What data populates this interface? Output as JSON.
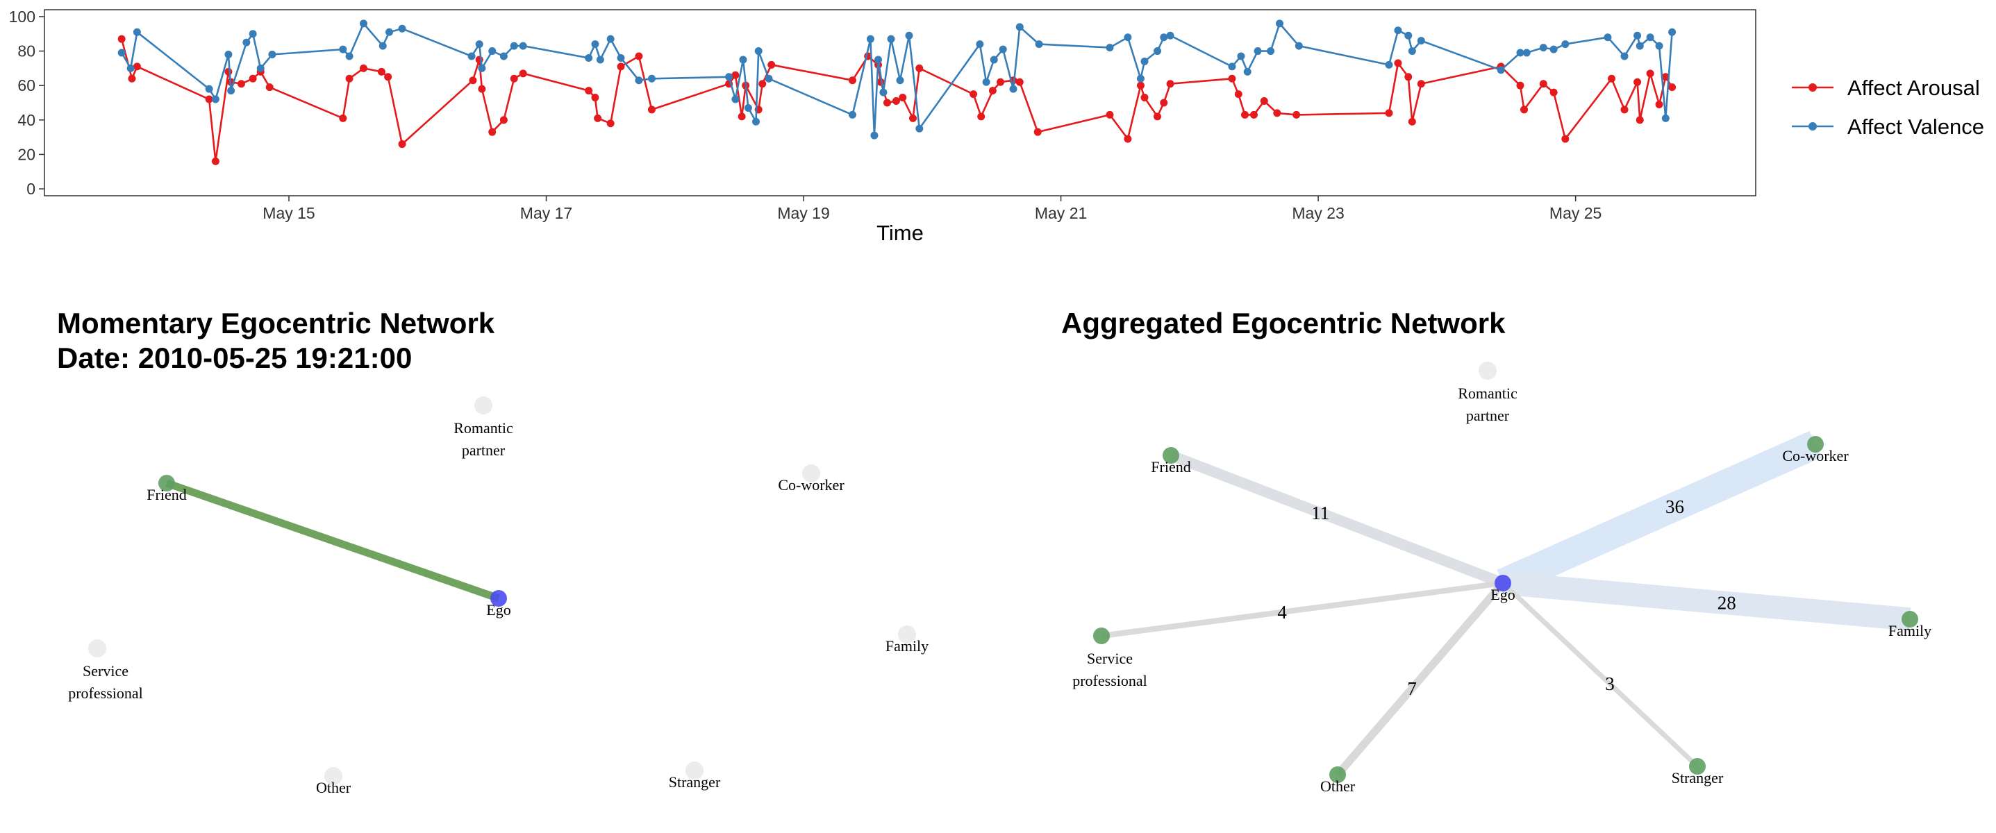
{
  "chart_data": [
    {
      "type": "line",
      "title": "",
      "xlabel": "Time",
      "ylabel": "",
      "ylim": [
        0,
        100
      ],
      "y_ticks": [
        0,
        20,
        40,
        60,
        80,
        100
      ],
      "x_range_days": [
        13.1,
        26.4
      ],
      "x_ticks": [
        {
          "day": 15,
          "label": "May 15"
        },
        {
          "day": 17,
          "label": "May 17"
        },
        {
          "day": 19,
          "label": "May 19"
        },
        {
          "day": 21,
          "label": "May 21"
        },
        {
          "day": 23,
          "label": "May 23"
        },
        {
          "day": 25,
          "label": "May 25"
        }
      ],
      "grid": false,
      "legend_position": "right",
      "series": [
        {
          "name": "Affect Arousal",
          "color": "#e41a1c",
          "points": [
            [
              13.7,
              87
            ],
            [
              13.78,
              64
            ],
            [
              13.82,
              71
            ],
            [
              14.38,
              52
            ],
            [
              14.43,
              16
            ],
            [
              14.53,
              68
            ],
            [
              14.55,
              62
            ],
            [
              14.63,
              61
            ],
            [
              14.72,
              64
            ],
            [
              14.78,
              68
            ],
            [
              14.85,
              59
            ],
            [
              15.42,
              41
            ],
            [
              15.47,
              64
            ],
            [
              15.58,
              70
            ],
            [
              15.72,
              68
            ],
            [
              15.77,
              65
            ],
            [
              15.88,
              26
            ],
            [
              16.43,
              63
            ],
            [
              16.48,
              75
            ],
            [
              16.5,
              58
            ],
            [
              16.58,
              33
            ],
            [
              16.67,
              40
            ],
            [
              16.75,
              64
            ],
            [
              16.82,
              67
            ],
            [
              17.33,
              57
            ],
            [
              17.38,
              53
            ],
            [
              17.4,
              41
            ],
            [
              17.5,
              38
            ],
            [
              17.58,
              71
            ],
            [
              17.72,
              77
            ],
            [
              17.82,
              46
            ],
            [
              18.42,
              61
            ],
            [
              18.47,
              66
            ],
            [
              18.52,
              42
            ],
            [
              18.55,
              60
            ],
            [
              18.65,
              46
            ],
            [
              18.68,
              61
            ],
            [
              18.75,
              72
            ],
            [
              19.38,
              63
            ],
            [
              19.5,
              77
            ],
            [
              19.58,
              72
            ],
            [
              19.6,
              62
            ],
            [
              19.65,
              50
            ],
            [
              19.72,
              51
            ],
            [
              19.77,
              53
            ],
            [
              19.85,
              41
            ],
            [
              19.9,
              70
            ],
            [
              20.32,
              55
            ],
            [
              20.38,
              42
            ],
            [
              20.47,
              57
            ],
            [
              20.53,
              62
            ],
            [
              20.63,
              63
            ],
            [
              20.68,
              62
            ],
            [
              20.82,
              33
            ],
            [
              21.38,
              43
            ],
            [
              21.52,
              29
            ],
            [
              21.62,
              60
            ],
            [
              21.65,
              53
            ],
            [
              21.75,
              42
            ],
            [
              21.8,
              50
            ],
            [
              21.85,
              61
            ],
            [
              22.33,
              64
            ],
            [
              22.38,
              55
            ],
            [
              22.43,
              43
            ],
            [
              22.5,
              43
            ],
            [
              22.58,
              51
            ],
            [
              22.68,
              44
            ],
            [
              22.83,
              43
            ],
            [
              23.55,
              44
            ],
            [
              23.62,
              73
            ],
            [
              23.7,
              65
            ],
            [
              23.73,
              39
            ],
            [
              23.8,
              61
            ],
            [
              24.42,
              71
            ],
            [
              24.57,
              60
            ],
            [
              24.6,
              46
            ],
            [
              24.75,
              61
            ],
            [
              24.83,
              56
            ],
            [
              24.92,
              29
            ],
            [
              25.28,
              64
            ],
            [
              25.38,
              46
            ],
            [
              25.48,
              62
            ],
            [
              25.5,
              40
            ],
            [
              25.58,
              67
            ],
            [
              25.65,
              49
            ],
            [
              25.7,
              65
            ],
            [
              25.75,
              59
            ]
          ]
        },
        {
          "name": "Affect Valence",
          "color": "#377eb8",
          "points": [
            [
              13.7,
              79
            ],
            [
              13.77,
              70
            ],
            [
              13.82,
              91
            ],
            [
              14.38,
              58
            ],
            [
              14.43,
              52
            ],
            [
              14.53,
              78
            ],
            [
              14.55,
              57
            ],
            [
              14.67,
              85
            ],
            [
              14.72,
              90
            ],
            [
              14.78,
              70
            ],
            [
              14.87,
              78
            ],
            [
              15.42,
              81
            ],
            [
              15.47,
              77
            ],
            [
              15.58,
              96
            ],
            [
              15.73,
              83
            ],
            [
              15.78,
              91
            ],
            [
              15.88,
              93
            ],
            [
              16.42,
              77
            ],
            [
              16.48,
              84
            ],
            [
              16.5,
              70
            ],
            [
              16.58,
              80
            ],
            [
              16.67,
              77
            ],
            [
              16.75,
              83
            ],
            [
              16.82,
              83
            ],
            [
              17.33,
              76
            ],
            [
              17.38,
              84
            ],
            [
              17.42,
              75
            ],
            [
              17.5,
              87
            ],
            [
              17.58,
              76
            ],
            [
              17.72,
              63
            ],
            [
              17.82,
              64
            ],
            [
              18.42,
              65
            ],
            [
              18.47,
              52
            ],
            [
              18.53,
              75
            ],
            [
              18.57,
              47
            ],
            [
              18.63,
              39
            ],
            [
              18.65,
              80
            ],
            [
              18.73,
              64
            ],
            [
              19.38,
              43
            ],
            [
              19.52,
              87
            ],
            [
              19.55,
              31
            ],
            [
              19.58,
              75
            ],
            [
              19.62,
              56
            ],
            [
              19.68,
              87
            ],
            [
              19.75,
              63
            ],
            [
              19.82,
              89
            ],
            [
              19.9,
              35
            ],
            [
              20.37,
              84
            ],
            [
              20.42,
              62
            ],
            [
              20.48,
              75
            ],
            [
              20.55,
              81
            ],
            [
              20.63,
              58
            ],
            [
              20.68,
              94
            ],
            [
              20.83,
              84
            ],
            [
              21.38,
              82
            ],
            [
              21.52,
              88
            ],
            [
              21.62,
              64
            ],
            [
              21.65,
              74
            ],
            [
              21.75,
              80
            ],
            [
              21.8,
              88
            ],
            [
              21.85,
              89
            ],
            [
              22.33,
              71
            ],
            [
              22.4,
              77
            ],
            [
              22.45,
              68
            ],
            [
              22.53,
              80
            ],
            [
              22.63,
              80
            ],
            [
              22.7,
              96
            ],
            [
              22.85,
              83
            ],
            [
              23.55,
              72
            ],
            [
              23.62,
              92
            ],
            [
              23.7,
              89
            ],
            [
              23.73,
              80
            ],
            [
              23.8,
              86
            ],
            [
              24.42,
              69
            ],
            [
              24.57,
              79
            ],
            [
              24.62,
              79
            ],
            [
              24.75,
              82
            ],
            [
              24.83,
              81
            ],
            [
              24.92,
              84
            ],
            [
              25.25,
              88
            ],
            [
              25.38,
              77
            ],
            [
              25.48,
              89
            ],
            [
              25.5,
              83
            ],
            [
              25.58,
              88
            ],
            [
              25.65,
              83
            ],
            [
              25.7,
              41
            ],
            [
              25.75,
              91
            ]
          ]
        }
      ]
    },
    {
      "type": "network",
      "title": "Momentary Egocentric Network",
      "subtitle": "Date: 2010-05-25 19:21:00",
      "nodes": [
        {
          "id": "ego",
          "label_lines": [
            "Ego"
          ],
          "role": "ego",
          "active": true
        },
        {
          "id": "romantic",
          "label_lines": [
            "Romantic",
            "partner"
          ],
          "active": false
        },
        {
          "id": "friend",
          "label_lines": [
            "Friend"
          ],
          "active": true
        },
        {
          "id": "coworker",
          "label_lines": [
            "Co-worker"
          ],
          "active": false
        },
        {
          "id": "family",
          "label_lines": [
            "Family"
          ],
          "active": false
        },
        {
          "id": "service",
          "label_lines": [
            "Service",
            "professional"
          ],
          "active": false
        },
        {
          "id": "other",
          "label_lines": [
            "Other"
          ],
          "active": false
        },
        {
          "id": "stranger",
          "label_lines": [
            "Stranger"
          ],
          "active": false
        }
      ],
      "edges": [
        {
          "source": "ego",
          "target": "friend",
          "weight": null,
          "color": "#6fa35e"
        }
      ]
    },
    {
      "type": "network",
      "title": "Aggregated Egocentric Network",
      "subtitle": "",
      "nodes": [
        {
          "id": "ego",
          "label_lines": [
            "Ego"
          ],
          "role": "ego",
          "active": true
        },
        {
          "id": "romantic",
          "label_lines": [
            "Romantic",
            "partner"
          ],
          "active": false
        },
        {
          "id": "friend",
          "label_lines": [
            "Friend"
          ],
          "active": true
        },
        {
          "id": "coworker",
          "label_lines": [
            "Co-worker"
          ],
          "active": true
        },
        {
          "id": "family",
          "label_lines": [
            "Family"
          ],
          "active": true
        },
        {
          "id": "service",
          "label_lines": [
            "Service",
            "professional"
          ],
          "active": true
        },
        {
          "id": "other",
          "label_lines": [
            "Other"
          ],
          "active": true
        },
        {
          "id": "stranger",
          "label_lines": [
            "Stranger"
          ],
          "active": true
        }
      ],
      "edges": [
        {
          "source": "ego",
          "target": "coworker",
          "weight": 36,
          "color": "#d9e7f7"
        },
        {
          "source": "ego",
          "target": "family",
          "weight": 28,
          "color": "#dde6f1"
        },
        {
          "source": "ego",
          "target": "friend",
          "weight": 11,
          "color": "#dcdfe3"
        },
        {
          "source": "ego",
          "target": "other",
          "weight": 7,
          "color": "#d9d9d9"
        },
        {
          "source": "ego",
          "target": "service",
          "weight": 4,
          "color": "#dadada"
        },
        {
          "source": "ego",
          "target": "stranger",
          "weight": 3,
          "color": "#dadada"
        }
      ]
    }
  ],
  "colors": {
    "ego_node": "#4b4bef",
    "active_node": "#5f9f61",
    "inactive_node": "#ececec"
  }
}
